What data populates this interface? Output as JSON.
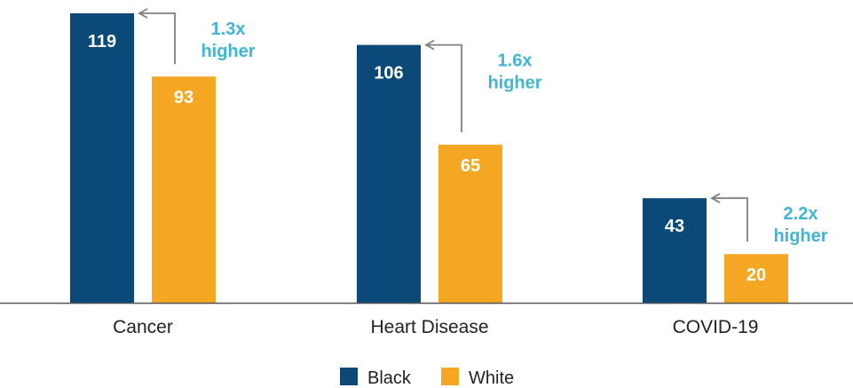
{
  "chart_data": {
    "type": "bar",
    "categories": [
      "Cancer",
      "Heart Disease",
      "COVID-19"
    ],
    "series": [
      {
        "name": "Black",
        "values": [
          119,
          106,
          43
        ]
      },
      {
        "name": "White",
        "values": [
          93,
          65,
          20
        ]
      }
    ],
    "data_labels": {
      "Black": [
        "119",
        "106",
        "43"
      ],
      "White": [
        "93",
        "65",
        "20"
      ]
    },
    "annotations": [
      {
        "ratio": "1.3x",
        "word": "higher"
      },
      {
        "ratio": "1.6x",
        "word": "higher"
      },
      {
        "ratio": "2.2x",
        "word": "higher"
      }
    ],
    "title": "",
    "xlabel": "",
    "ylabel": "",
    "ylim": [
      0,
      125
    ],
    "grid": false,
    "legend_position": "bottom-center"
  },
  "colors": {
    "Black": "#0b4a78",
    "White": "#f5a623",
    "annotation": "#3fb6d3",
    "arrow": "#808080",
    "axis": "#555555"
  }
}
